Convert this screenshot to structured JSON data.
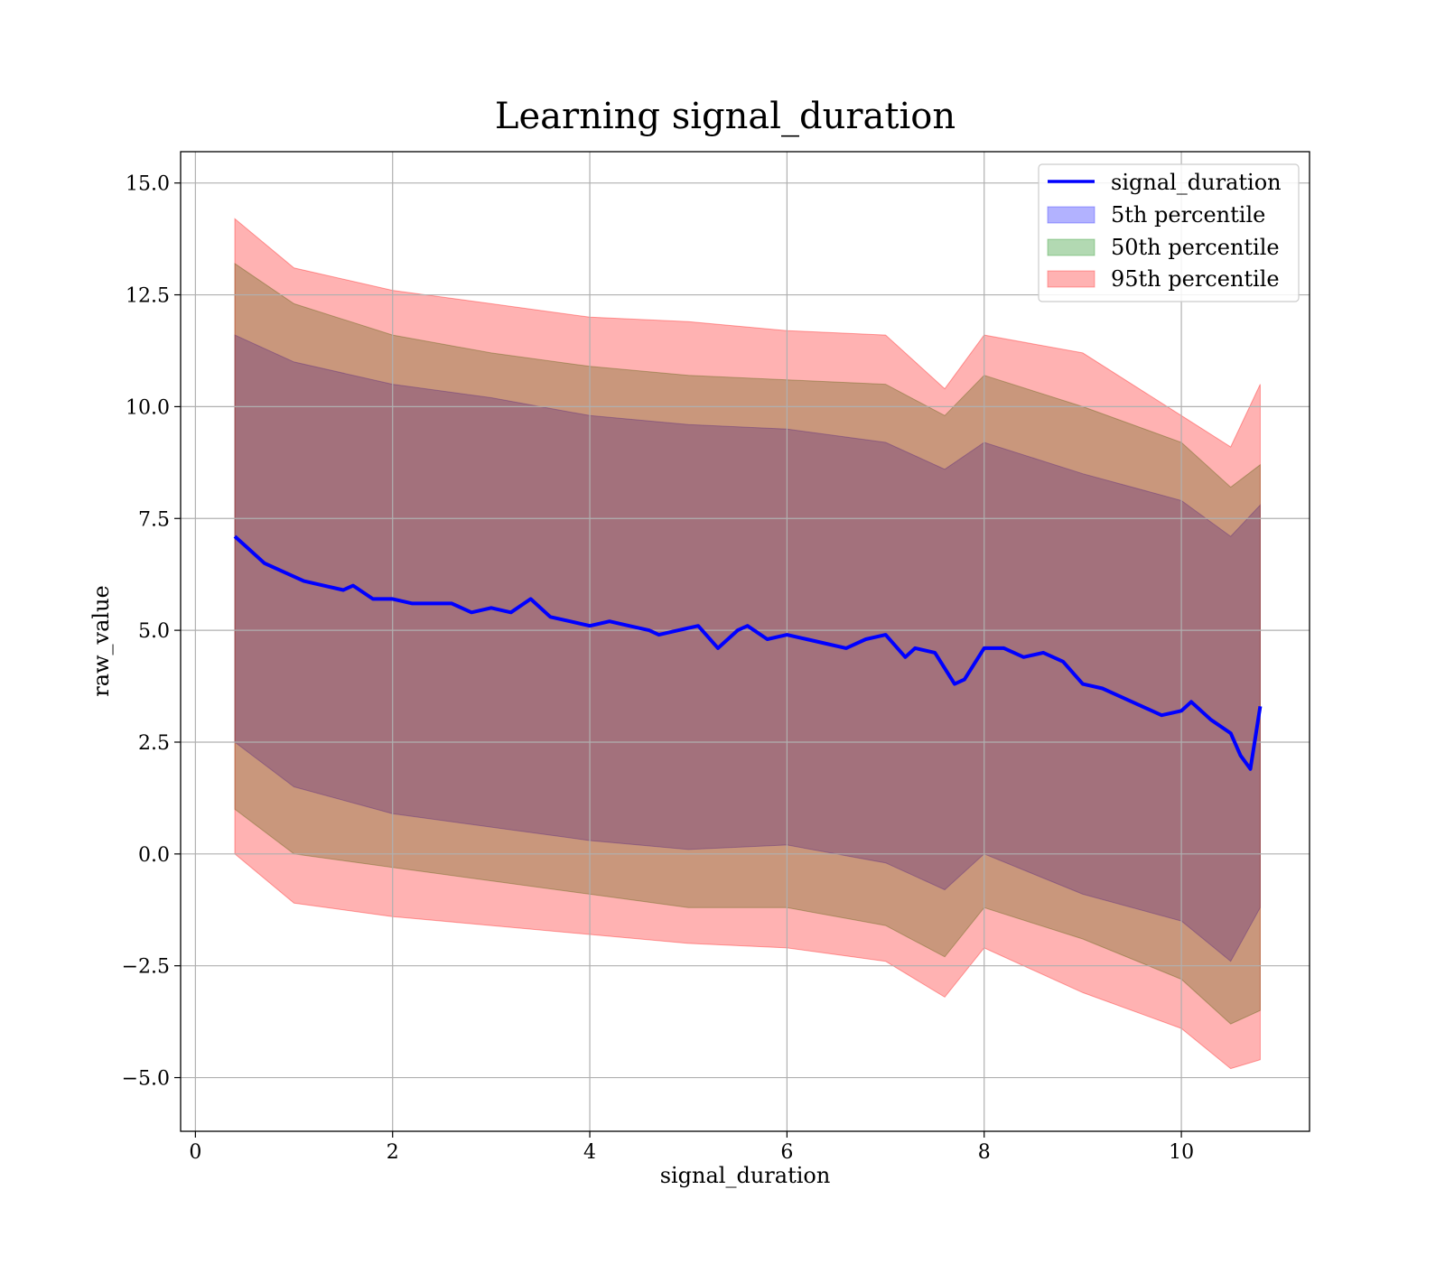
{
  "chart_data": {
    "type": "area",
    "title": "Learning signal_duration",
    "xlabel": "signal_duration",
    "ylabel": "raw_value",
    "xlim": [
      -0.15,
      11.3
    ],
    "ylim": [
      -6.2,
      15.7
    ],
    "xticks": [
      0,
      2,
      4,
      6,
      8,
      10
    ],
    "xtick_labels": [
      "0",
      "2",
      "4",
      "6",
      "8",
      "10"
    ],
    "yticks": [
      -5.0,
      -2.5,
      0.0,
      2.5,
      5.0,
      7.5,
      10.0,
      12.5,
      15.0
    ],
    "ytick_labels": [
      "−5.0",
      "−2.5",
      "0.0",
      "2.5",
      "5.0",
      "7.5",
      "10.0",
      "12.5",
      "15.0"
    ],
    "grid": true,
    "legend_position": "top-right",
    "line_series": {
      "name": "signal_duration",
      "color": "#0000ff",
      "x": [
        0.4,
        0.5,
        0.7,
        0.9,
        1.1,
        1.3,
        1.5,
        1.6,
        1.8,
        2.0,
        2.2,
        2.4,
        2.6,
        2.8,
        3.0,
        3.2,
        3.4,
        3.6,
        3.8,
        4.0,
        4.2,
        4.4,
        4.6,
        4.7,
        4.9,
        5.1,
        5.3,
        5.5,
        5.6,
        5.8,
        6.0,
        6.2,
        6.4,
        6.6,
        6.8,
        7.0,
        7.2,
        7.3,
        7.5,
        7.7,
        7.8,
        8.0,
        8.2,
        8.4,
        8.6,
        8.8,
        9.0,
        9.2,
        9.4,
        9.6,
        9.8,
        10.0,
        10.1,
        10.3,
        10.5,
        10.6,
        10.7,
        10.75,
        10.8
      ],
      "y": [
        7.1,
        6.9,
        6.5,
        6.3,
        6.1,
        6.0,
        5.9,
        6.0,
        5.7,
        5.7,
        5.6,
        5.6,
        5.6,
        5.4,
        5.5,
        5.4,
        5.7,
        5.3,
        5.2,
        5.1,
        5.2,
        5.1,
        5.0,
        4.9,
        5.0,
        5.1,
        4.6,
        5.0,
        5.1,
        4.8,
        4.9,
        4.8,
        4.7,
        4.6,
        4.8,
        4.9,
        4.4,
        4.6,
        4.5,
        3.8,
        3.9,
        4.6,
        4.6,
        4.4,
        4.5,
        4.3,
        3.8,
        3.7,
        3.5,
        3.3,
        3.1,
        3.2,
        3.4,
        3.0,
        2.7,
        2.2,
        1.9,
        2.6,
        3.3
      ]
    },
    "bands": [
      {
        "name": "5th percentile",
        "color": "#0000ff",
        "x": [
          0.4,
          1.0,
          2.0,
          3.0,
          4.0,
          5.0,
          6.0,
          7.0,
          7.6,
          8.0,
          9.0,
          10.0,
          10.5,
          10.8
        ],
        "upper": [
          11.6,
          11.0,
          10.5,
          10.2,
          9.8,
          9.6,
          9.5,
          9.2,
          8.6,
          9.2,
          8.5,
          7.9,
          7.1,
          7.8
        ],
        "lower": [
          2.5,
          1.5,
          0.9,
          0.6,
          0.3,
          0.1,
          0.2,
          -0.2,
          -0.8,
          0.0,
          -0.9,
          -1.5,
          -2.4,
          -1.2
        ]
      },
      {
        "name": "50th percentile",
        "color": "#008000",
        "x": [
          0.4,
          1.0,
          2.0,
          3.0,
          4.0,
          5.0,
          6.0,
          7.0,
          7.6,
          8.0,
          9.0,
          10.0,
          10.5,
          10.8
        ],
        "upper": [
          13.2,
          12.3,
          11.6,
          11.2,
          10.9,
          10.7,
          10.6,
          10.5,
          9.8,
          10.7,
          10.0,
          9.2,
          8.2,
          8.7
        ],
        "lower": [
          1.0,
          0.0,
          -0.3,
          -0.6,
          -0.9,
          -1.2,
          -1.2,
          -1.6,
          -2.3,
          -1.2,
          -1.9,
          -2.8,
          -3.8,
          -3.5
        ]
      },
      {
        "name": "95th percentile",
        "color": "#ff0000",
        "x": [
          0.4,
          1.0,
          2.0,
          3.0,
          4.0,
          5.0,
          6.0,
          7.0,
          7.6,
          8.0,
          9.0,
          10.0,
          10.5,
          10.8
        ],
        "upper": [
          14.2,
          13.1,
          12.6,
          12.3,
          12.0,
          11.9,
          11.7,
          11.6,
          10.4,
          11.6,
          11.2,
          9.8,
          9.1,
          10.5
        ],
        "lower": [
          0.0,
          -1.1,
          -1.4,
          -1.6,
          -1.8,
          -2.0,
          -2.1,
          -2.4,
          -3.2,
          -2.1,
          -3.1,
          -3.9,
          -4.8,
          -4.6
        ]
      }
    ]
  }
}
